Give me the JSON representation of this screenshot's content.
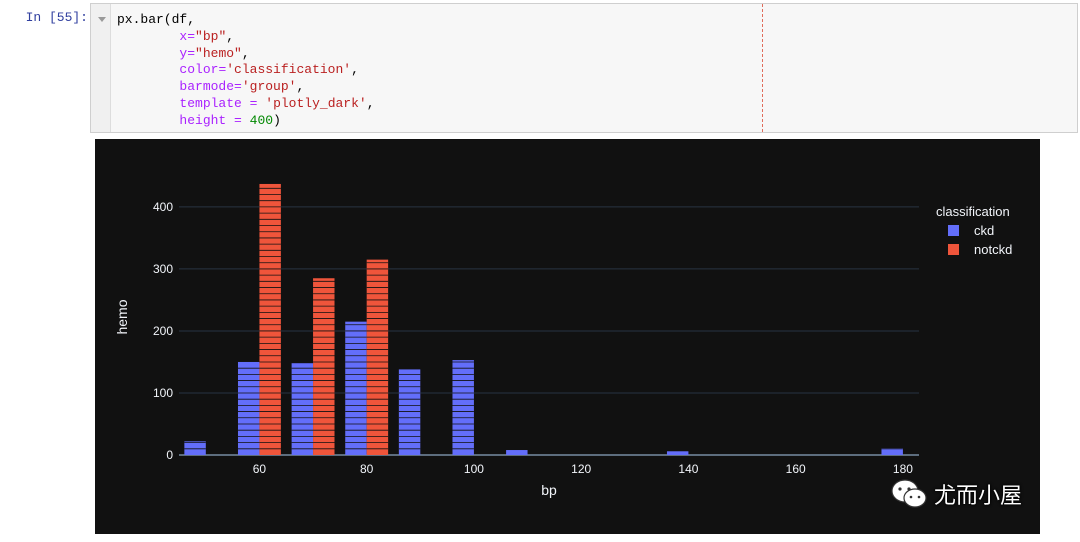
{
  "cell": {
    "prompt": "In [55]:",
    "code": {
      "line1": "px.bar(df,",
      "x_kw": "x",
      "x_val": "\"bp\"",
      "y_kw": "y",
      "y_val": "\"hemo\"",
      "color_kw": "color",
      "color_val": "'classification'",
      "barmode_kw": "barmode",
      "barmode_val": "'group'",
      "template_kw": "template",
      "template_val": "'plotly_dark'",
      "height_kw": "height",
      "height_val": "400"
    }
  },
  "colors": {
    "ckd": "#636EFA",
    "notckd": "#EF553B",
    "plot_bg": "#111111"
  },
  "chart_data": {
    "type": "bar",
    "title": "",
    "xlabel": "bp",
    "ylabel": "hemo",
    "xlim": [
      45,
      183
    ],
    "ylim": [
      0,
      445
    ],
    "x_ticks": [
      60,
      80,
      100,
      120,
      140,
      160,
      180
    ],
    "y_ticks": [
      0,
      100,
      200,
      300,
      400
    ],
    "grid": true,
    "legend": {
      "title": "classification",
      "position": "top-right"
    },
    "series": [
      {
        "name": "ckd",
        "x": [
          50,
          60,
          70,
          80,
          90,
          100,
          110,
          140,
          180
        ],
        "y": [
          22,
          150,
          148,
          215,
          138,
          153,
          8,
          6,
          11
        ]
      },
      {
        "name": "notckd",
        "x": [
          60,
          70,
          80
        ],
        "y": [
          437,
          285,
          315
        ]
      }
    ]
  },
  "watermark": {
    "text": "尤而小屋",
    "icon": "wechat-icon"
  }
}
